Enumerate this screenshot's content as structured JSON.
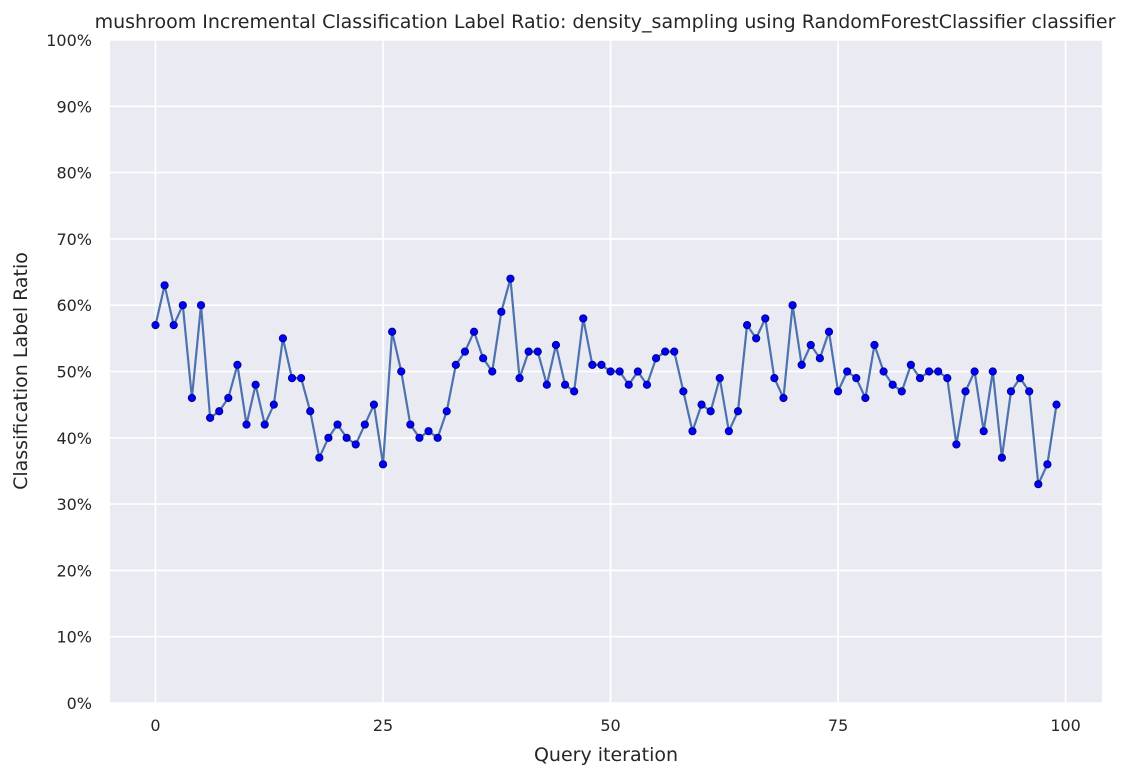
{
  "chart_data": {
    "type": "line",
    "title": "mushroom Incremental Classification Label Ratio: density_sampling using RandomForestClassifier classifier",
    "xlabel": "Query iteration",
    "ylabel": "Classification Label Ratio",
    "xlim": [
      -5,
      104
    ],
    "ylim": [
      0,
      1
    ],
    "xticks": [
      0,
      25,
      50,
      75,
      100
    ],
    "xtick_labels": [
      "0",
      "25",
      "50",
      "75",
      "100"
    ],
    "yticks": [
      0,
      0.1,
      0.2,
      0.3,
      0.4,
      0.5,
      0.6,
      0.7,
      0.8,
      0.9,
      1.0
    ],
    "ytick_labels": [
      "0%",
      "10%",
      "20%",
      "30%",
      "40%",
      "50%",
      "60%",
      "70%",
      "80%",
      "90%",
      "100%"
    ],
    "grid": true,
    "legend": "none",
    "line_color": "#4c72b0",
    "marker_color": "#0000ff",
    "background_color": "#eaeaf2",
    "series": [
      {
        "x": [
          0,
          1,
          2,
          3,
          4,
          5,
          6,
          7,
          8,
          9,
          10,
          11,
          12,
          13,
          14,
          15,
          16,
          17,
          18,
          19,
          20,
          21,
          22,
          23,
          24,
          25,
          26,
          27,
          28,
          29,
          30,
          31,
          32,
          33,
          34,
          35,
          36,
          37,
          38,
          39,
          40,
          41,
          42,
          43,
          44,
          45,
          46,
          47,
          48,
          49,
          50,
          51,
          52,
          53,
          54,
          55,
          56,
          57,
          58,
          59,
          60,
          61,
          62,
          63,
          64,
          65,
          66,
          67,
          68,
          69,
          70,
          71,
          72,
          73,
          74,
          75,
          76,
          77,
          78,
          79,
          80,
          81,
          82,
          83,
          84,
          85,
          86,
          87,
          88,
          89,
          90,
          91,
          92,
          93,
          94,
          95,
          96,
          97,
          98,
          99
        ],
        "values": [
          0.57,
          0.63,
          0.57,
          0.6,
          0.46,
          0.6,
          0.43,
          0.44,
          0.46,
          0.51,
          0.42,
          0.48,
          0.42,
          0.45,
          0.55,
          0.49,
          0.49,
          0.44,
          0.37,
          0.4,
          0.42,
          0.4,
          0.39,
          0.42,
          0.45,
          0.36,
          0.56,
          0.5,
          0.42,
          0.4,
          0.41,
          0.4,
          0.44,
          0.51,
          0.53,
          0.56,
          0.52,
          0.5,
          0.59,
          0.64,
          0.49,
          0.53,
          0.53,
          0.48,
          0.54,
          0.48,
          0.47,
          0.58,
          0.51,
          0.51,
          0.5,
          0.5,
          0.48,
          0.5,
          0.48,
          0.52,
          0.53,
          0.53,
          0.47,
          0.41,
          0.45,
          0.44,
          0.49,
          0.41,
          0.44,
          0.57,
          0.55,
          0.58,
          0.49,
          0.46,
          0.6,
          0.51,
          0.54,
          0.52,
          0.56,
          0.47,
          0.5,
          0.49,
          0.46,
          0.54,
          0.5,
          0.48,
          0.47,
          0.51,
          0.49,
          0.5,
          0.5,
          0.49,
          0.39,
          0.47,
          0.5,
          0.41,
          0.5,
          0.37,
          0.47,
          0.49,
          0.47,
          0.33,
          0.36,
          0.45
        ]
      }
    ]
  }
}
